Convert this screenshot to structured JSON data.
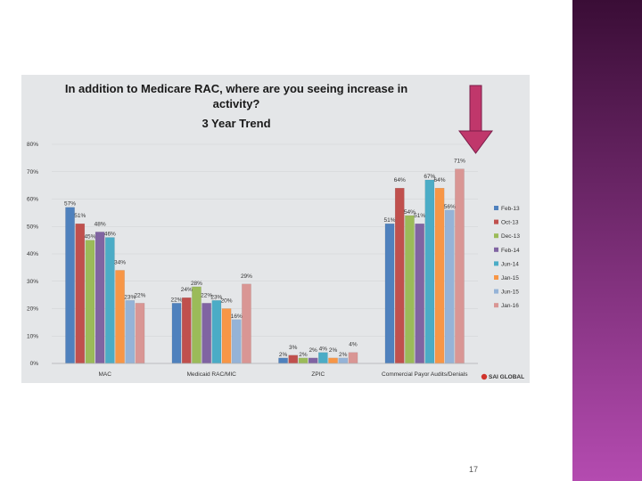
{
  "slide": {
    "page_number": "17"
  },
  "colors": {
    "side_band_top": "#3a0d36",
    "side_band_bottom": "#b44bb0",
    "arrow": "#c0376b",
    "panel": "#e4e6e8"
  },
  "logo": {
    "text": "SAI GLOBAL",
    "icon": "sai-global-logo-icon"
  },
  "chart_data": {
    "type": "bar",
    "title_lines": [
      "In addition to Medicare RAC, where are you seeing increase in",
      "activity?",
      "3 Year Trend"
    ],
    "categories": [
      "MAC",
      "Medicaid RAC/MIC",
      "ZPIC",
      "Commercial Payor Audits/Denials"
    ],
    "ylim": [
      0,
      80
    ],
    "yticks": [
      "0%",
      "10%",
      "20%",
      "30%",
      "40%",
      "50%",
      "60%",
      "70%",
      "80%"
    ],
    "grid": true,
    "legend_position": "right",
    "series": [
      {
        "name": "Feb-13",
        "color": "#4f81bd",
        "values": [
          57,
          22,
          2,
          51
        ],
        "labels": [
          "57%",
          "22%",
          "2%",
          "51%"
        ]
      },
      {
        "name": "Oct-13",
        "color": "#c0504d",
        "values": [
          51,
          24,
          3,
          64
        ],
        "labels": [
          "51%",
          "24%",
          "3%",
          "64%"
        ]
      },
      {
        "name": "Dec-13",
        "color": "#9bbb59",
        "values": [
          45,
          28,
          2,
          54
        ],
        "labels": [
          "45%",
          "28%",
          "2%",
          "54%"
        ]
      },
      {
        "name": "Feb-14",
        "color": "#8064a2",
        "values": [
          48,
          22,
          2,
          51
        ],
        "labels": [
          "48%",
          "22%",
          "2%",
          "51%"
        ]
      },
      {
        "name": "Jun-14",
        "color": "#4bacc6",
        "values": [
          46,
          23,
          4,
          67
        ],
        "labels": [
          "46%",
          "23%",
          "4%",
          "67%"
        ]
      },
      {
        "name": "Jan-15",
        "color": "#f79646",
        "values": [
          34,
          20,
          2,
          64
        ],
        "labels": [
          "34%",
          "20%",
          "2%",
          "64%"
        ]
      },
      {
        "name": "Jun-15",
        "color": "#95b3d7",
        "values": [
          23,
          16,
          2,
          56
        ],
        "labels": [
          "23%",
          "16%",
          "2%",
          "56%"
        ]
      },
      {
        "name": "Jan-16",
        "color": "#d99694",
        "values": [
          22,
          29,
          4,
          71
        ],
        "labels": [
          "22%",
          "29%",
          "4%",
          "71%"
        ]
      }
    ]
  }
}
